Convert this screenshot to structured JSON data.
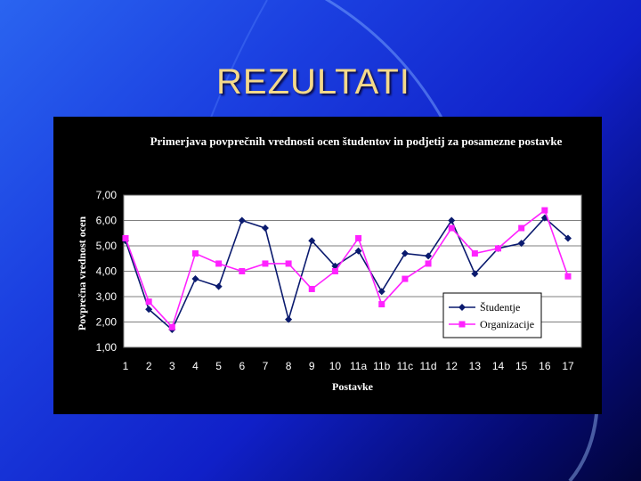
{
  "slide": {
    "title": "REZULTATI"
  },
  "colors": {
    "studentje": "#0a1a6e",
    "organizacije": "#ff22ff",
    "title": "#f4d98a"
  },
  "chart_data": {
    "type": "line",
    "title": "Primerjava povprečnih vrednosti ocen študentov in podjetij za posamezne postavke",
    "xlabel": "Postavke",
    "ylabel": "Povprečna vrednost ocen",
    "categories": [
      "1",
      "2",
      "3",
      "4",
      "5",
      "6",
      "7",
      "8",
      "9",
      "10",
      "11a",
      "11b",
      "11c",
      "11d",
      "12",
      "13",
      "14",
      "15",
      "16",
      "17"
    ],
    "yticks": [
      "1,00",
      "2,00",
      "3,00",
      "4,00",
      "5,00",
      "6,00",
      "7,00"
    ],
    "ylim": [
      1,
      7
    ],
    "grid": true,
    "legend_position": "bottom-right",
    "series": [
      {
        "name": "Študentje",
        "marker": "diamond",
        "values": [
          5.2,
          2.5,
          1.7,
          3.7,
          3.4,
          6.0,
          5.7,
          2.1,
          5.2,
          4.2,
          4.8,
          3.2,
          4.7,
          4.6,
          6.0,
          3.9,
          4.9,
          5.1,
          6.1,
          5.3
        ]
      },
      {
        "name": "Organizacije",
        "marker": "square",
        "values": [
          5.3,
          2.8,
          1.8,
          4.7,
          4.3,
          4.0,
          4.3,
          4.3,
          3.3,
          4.0,
          5.3,
          2.7,
          3.7,
          4.3,
          5.7,
          4.7,
          4.9,
          5.7,
          6.4,
          3.8
        ]
      }
    ]
  }
}
